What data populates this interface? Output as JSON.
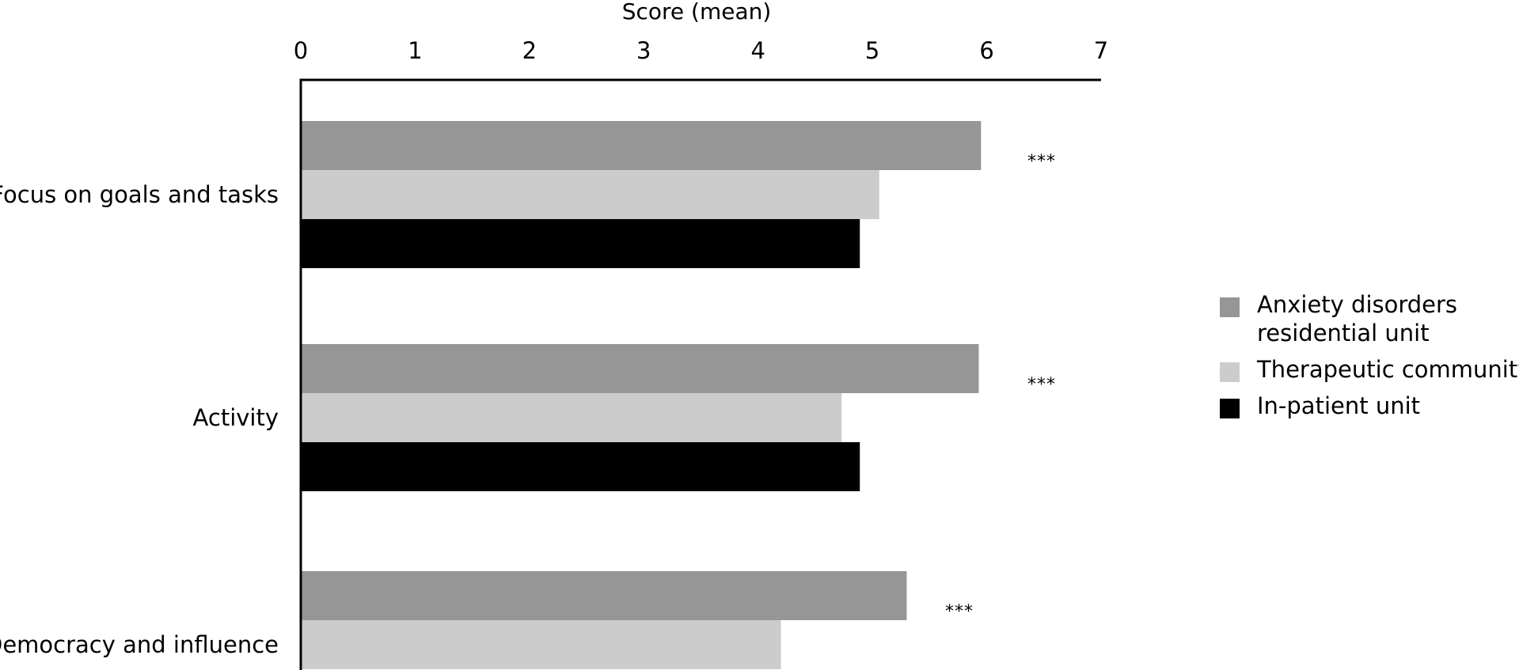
{
  "chart_data": {
    "type": "bar",
    "orientation": "horizontal",
    "xlabel": "Score (mean)",
    "xlim": [
      0,
      7
    ],
    "xticks": [
      0,
      1,
      2,
      3,
      4,
      5,
      6,
      7
    ],
    "categories": [
      "Focus on goals and tasks",
      "Activity",
      "Democracy and influence"
    ],
    "series": [
      {
        "name": "Anxiety disorders residential unit",
        "name_lines": [
          "Anxiety disorders",
          "residential unit"
        ],
        "color": "#969696",
        "values": [
          5.95,
          5.93,
          5.3
        ]
      },
      {
        "name": "Therapeutic community",
        "name_lines": [
          "Therapeutic community"
        ],
        "color": "#cccccc",
        "values": [
          5.06,
          4.73,
          4.2
        ]
      },
      {
        "name": "In-patient unit",
        "name_lines": [
          "In-patient unit"
        ],
        "color": "#000000",
        "values": [
          4.89,
          4.89,
          null
        ]
      }
    ],
    "significance": [
      "***",
      "***",
      "***"
    ],
    "grid": false,
    "legend_position": "right"
  }
}
